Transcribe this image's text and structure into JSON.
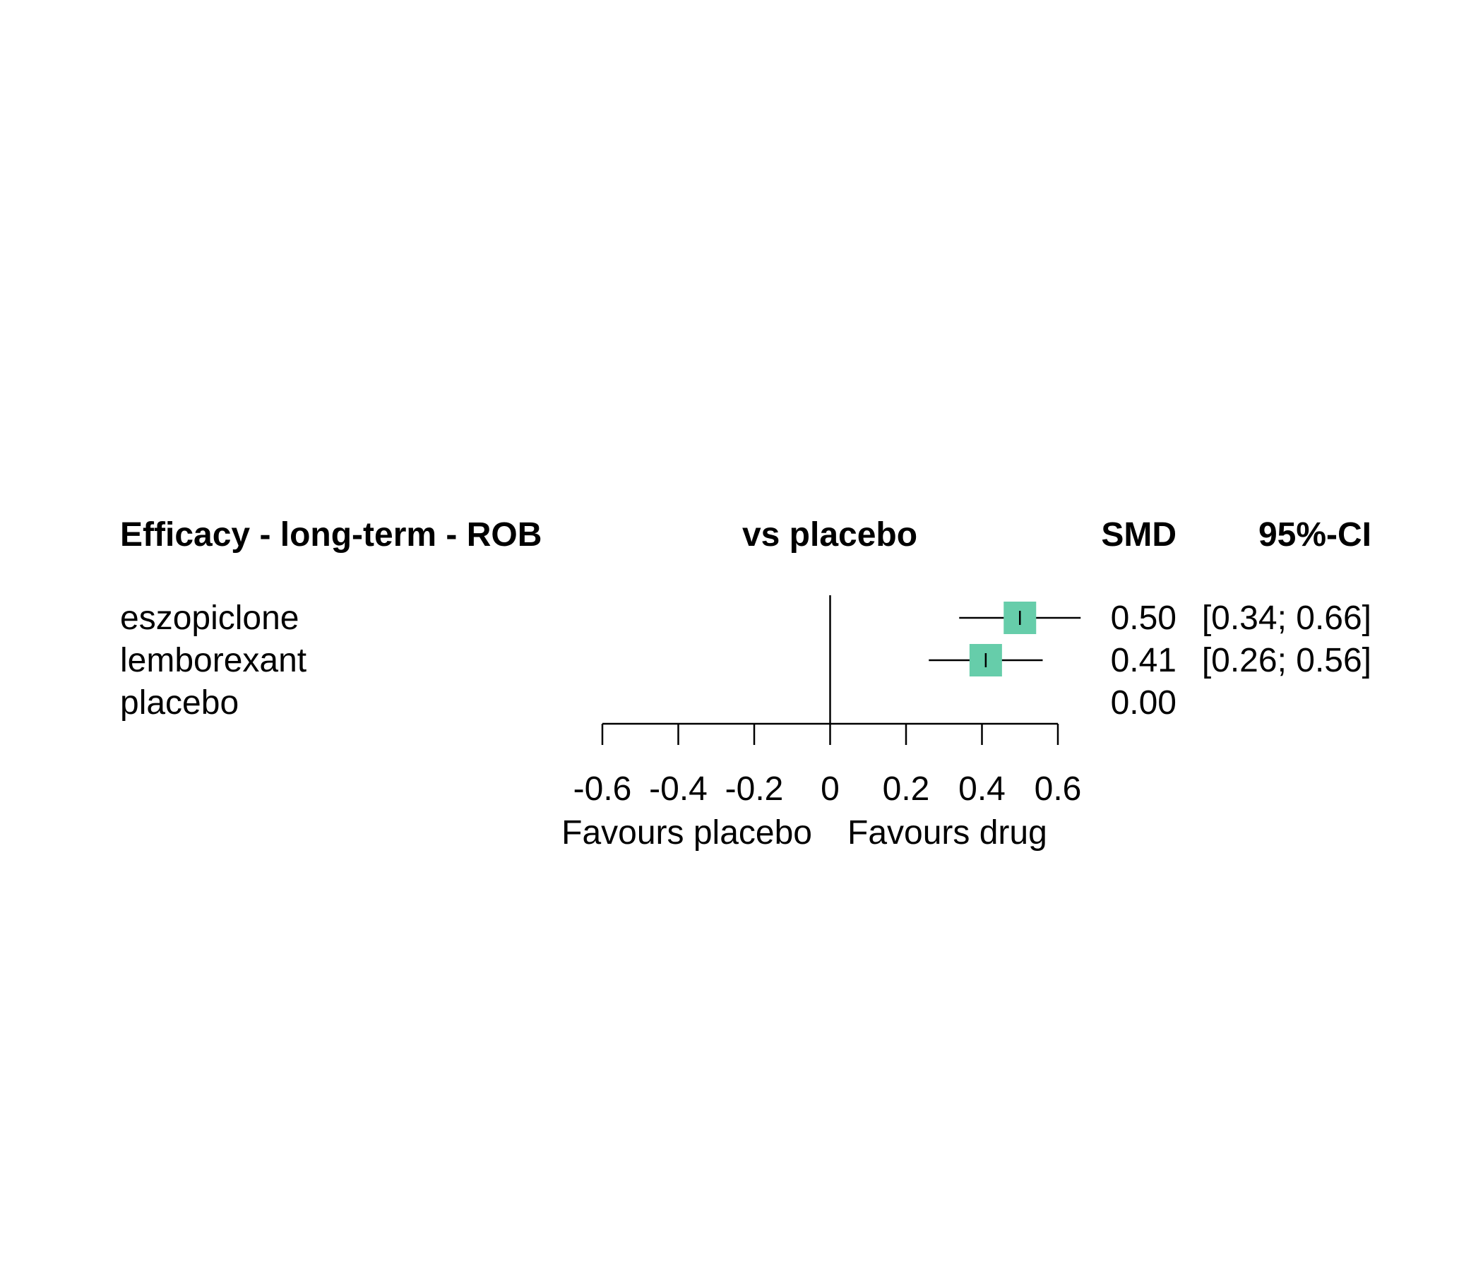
{
  "chart_data": {
    "type": "forest",
    "headers": {
      "left": "Efficacy - long-term - ROB",
      "middle": "vs placebo",
      "estimate": "SMD",
      "ci": "95%-CI"
    },
    "rows": [
      {
        "label": "eszopiclone",
        "estimate": 0.5,
        "lower": 0.34,
        "upper": 0.66,
        "estimate_text": "0.50",
        "ci_text": "[0.34; 0.66]"
      },
      {
        "label": "lemborexant",
        "estimate": 0.41,
        "lower": 0.26,
        "upper": 0.56,
        "estimate_text": "0.41",
        "ci_text": "[0.26; 0.56]"
      },
      {
        "label": "placebo",
        "estimate": 0.0,
        "lower": null,
        "upper": null,
        "estimate_text": "0.00",
        "ci_text": ""
      }
    ],
    "x_axis": {
      "range": [
        -0.6,
        0.6
      ],
      "ticks": [
        -0.6,
        -0.4,
        -0.2,
        0,
        0.2,
        0.4,
        0.6
      ],
      "tick_labels": [
        "-0.6",
        "-0.4",
        "-0.2",
        "0",
        "0.2",
        "0.4",
        "0.6"
      ],
      "reference_line": 0,
      "left_label": "Favours placebo",
      "right_label": "Favours drug"
    },
    "colors": {
      "marker": "#66CDAA",
      "line": "#000000"
    }
  }
}
